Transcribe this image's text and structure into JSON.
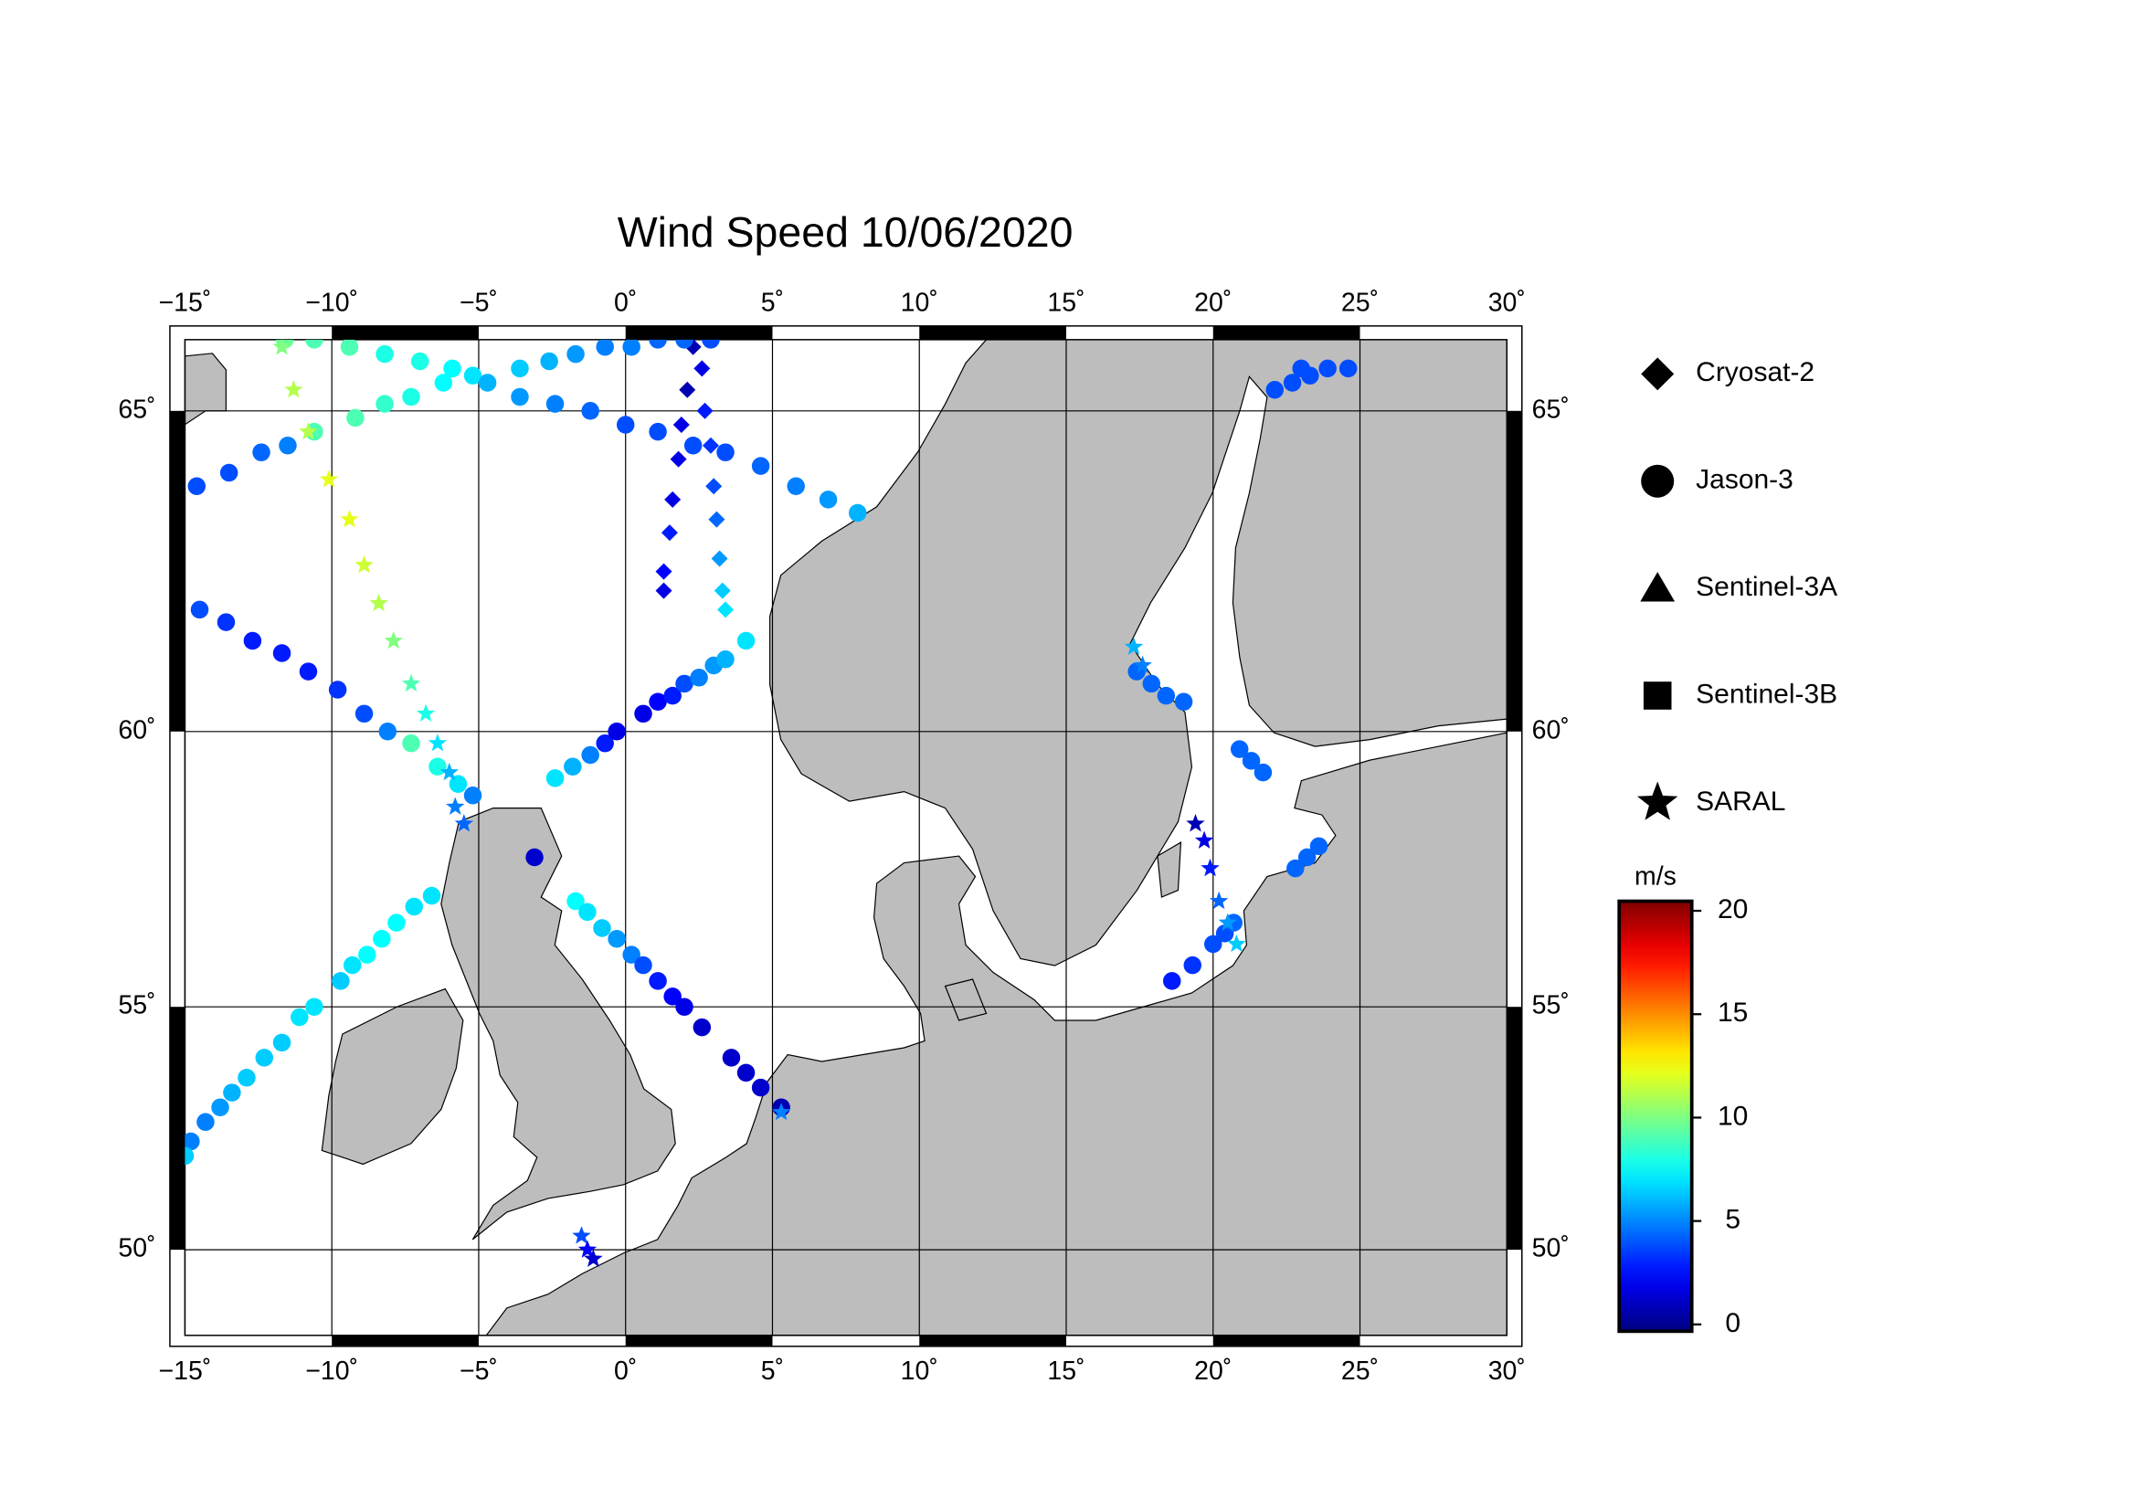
{
  "chart_data": {
    "type": "map",
    "projection": "mercator",
    "title": "Wind Speed 10/06/2020",
    "xlim": [
      -15,
      30
    ],
    "ylim": [
      48.1,
      66.0
    ],
    "xticks": [
      {
        "value": -15,
        "label": "−15˚"
      },
      {
        "value": -10,
        "label": "−10˚"
      },
      {
        "value": -5,
        "label": "−5˚"
      },
      {
        "value": 0,
        "label": "0˚"
      },
      {
        "value": 5,
        "label": "5˚"
      },
      {
        "value": 10,
        "label": "10˚"
      },
      {
        "value": 15,
        "label": "15˚"
      },
      {
        "value": 20,
        "label": "20˚"
      },
      {
        "value": 25,
        "label": "25˚"
      },
      {
        "value": 30,
        "label": "30˚"
      }
    ],
    "yticks": [
      {
        "value": 50,
        "label": "50˚"
      },
      {
        "value": 55,
        "label": "55˚"
      },
      {
        "value": 60,
        "label": "60˚"
      },
      {
        "value": 65,
        "label": "65˚"
      }
    ],
    "grid": true,
    "colorbar": {
      "label": "m/s",
      "lim": [
        0,
        20
      ],
      "ticks": [
        0,
        5,
        10,
        15,
        20
      ],
      "colormap": "jet"
    },
    "series": [
      {
        "name": "Cryosat-2",
        "marker": "diamond",
        "tracks": [
          [
            [
              2.3,
              65.9,
              1
            ],
            [
              2.1,
              65.3,
              1
            ],
            [
              1.9,
              64.8,
              2
            ],
            [
              1.8,
              64.3,
              2
            ],
            [
              1.6,
              63.7,
              2
            ],
            [
              1.5,
              63.2,
              3
            ],
            [
              1.3,
              62.6,
              2.5
            ],
            [
              1.3,
              62.3,
              2
            ]
          ],
          [
            [
              2.6,
              65.6,
              2
            ],
            [
              2.7,
              65.0,
              3
            ],
            [
              2.9,
              64.5,
              3.5
            ],
            [
              3.0,
              63.9,
              4
            ],
            [
              3.1,
              63.4,
              4.5
            ],
            [
              3.2,
              62.8,
              5.5
            ],
            [
              3.3,
              62.3,
              6.5
            ],
            [
              3.4,
              62.0,
              7
            ]
          ]
        ]
      },
      {
        "name": "Jason-3",
        "marker": "circle",
        "tracks": [
          [
            [
              -14.6,
              63.9,
              4
            ],
            [
              -13.5,
              64.1,
              4
            ],
            [
              -12.4,
              64.4,
              4.5
            ],
            [
              -11.5,
              64.5,
              5
            ],
            [
              -10.6,
              64.7,
              9
            ],
            [
              -9.2,
              64.9,
              9
            ],
            [
              -8.2,
              65.1,
              8.5
            ],
            [
              -7.3,
              65.2,
              8
            ],
            [
              -6.2,
              65.4,
              7.5
            ],
            [
              -5.2,
              65.5,
              7
            ],
            [
              -3.6,
              65.6,
              6.5
            ],
            [
              -2.6,
              65.7,
              6
            ],
            [
              -1.7,
              65.8,
              5.5
            ],
            [
              -0.7,
              65.9,
              5
            ],
            [
              0.2,
              65.9,
              5
            ],
            [
              1.1,
              66.0,
              4.5
            ],
            [
              2.0,
              66.0,
              4.5
            ],
            [
              2.9,
              66.0,
              4
            ]
          ],
          [
            [
              -11.6,
              66.0,
              9.5
            ],
            [
              -10.6,
              66.0,
              9
            ],
            [
              -9.4,
              65.9,
              9
            ],
            [
              -8.2,
              65.8,
              8
            ],
            [
              -7.0,
              65.7,
              8
            ],
            [
              -5.9,
              65.6,
              7.5
            ],
            [
              -4.7,
              65.4,
              6
            ],
            [
              -3.6,
              65.2,
              5.5
            ],
            [
              -2.4,
              65.1,
              5
            ],
            [
              -1.2,
              65.0,
              4.5
            ],
            [
              0.0,
              64.8,
              4
            ],
            [
              1.1,
              64.7,
              4
            ],
            [
              2.3,
              64.5,
              4
            ],
            [
              3.4,
              64.4,
              4
            ],
            [
              4.6,
              64.2,
              4.5
            ],
            [
              5.8,
              63.9,
              5
            ],
            [
              6.9,
              63.7,
              5.5
            ],
            [
              7.9,
              63.5,
              6
            ]
          ],
          [
            [
              -14.5,
              62.0,
              4
            ],
            [
              -13.6,
              61.8,
              3.5
            ],
            [
              -12.7,
              61.5,
              3
            ],
            [
              -11.7,
              61.3,
              3
            ],
            [
              -10.8,
              61.0,
              3
            ],
            [
              -9.8,
              60.7,
              3.5
            ],
            [
              -8.9,
              60.3,
              4
            ],
            [
              -8.1,
              60.0,
              5
            ],
            [
              -7.3,
              59.8,
              9
            ],
            [
              -6.4,
              59.4,
              8
            ],
            [
              -5.7,
              59.1,
              7
            ],
            [
              -5.2,
              58.9,
              5
            ]
          ],
          [
            [
              -2.4,
              59.2,
              7
            ],
            [
              -1.8,
              59.4,
              6
            ],
            [
              -1.2,
              59.6,
              5
            ],
            [
              -0.7,
              59.8,
              3
            ],
            [
              -0.3,
              60.0,
              2
            ],
            [
              0.6,
              60.3,
              2
            ],
            [
              1.1,
              60.5,
              2.5
            ],
            [
              1.6,
              60.6,
              3
            ],
            [
              2.0,
              60.8,
              4
            ],
            [
              2.5,
              60.9,
              5
            ],
            [
              3.0,
              61.1,
              5.5
            ],
            [
              3.4,
              61.2,
              6
            ],
            [
              4.1,
              61.5,
              7
            ]
          ],
          [
            [
              -6.6,
              57.1,
              7
            ],
            [
              -7.2,
              56.9,
              7
            ],
            [
              -7.8,
              56.6,
              7.5
            ],
            [
              -8.3,
              56.3,
              7.5
            ],
            [
              -8.8,
              56.0,
              7.5
            ],
            [
              -9.3,
              55.8,
              7
            ],
            [
              -9.7,
              55.5,
              6.5
            ]
          ],
          [
            [
              -10.6,
              55.0,
              7
            ],
            [
              -11.1,
              54.8,
              7
            ],
            [
              -11.7,
              54.3,
              6.5
            ],
            [
              -12.3,
              54.0,
              6.5
            ],
            [
              -12.9,
              53.6,
              6.5
            ],
            [
              -13.4,
              53.3,
              6
            ],
            [
              -13.8,
              53.0,
              5.5
            ],
            [
              -14.3,
              52.7,
              5
            ],
            [
              -14.8,
              52.3,
              5
            ],
            [
              -15.0,
              52.0,
              6.5
            ]
          ],
          [
            [
              -1.7,
              57.0,
              7.5
            ],
            [
              -1.3,
              56.8,
              7
            ],
            [
              -0.8,
              56.5,
              6.5
            ],
            [
              -0.3,
              56.3,
              5.5
            ],
            [
              0.2,
              56.0,
              5
            ],
            [
              0.6,
              55.8,
              4
            ],
            [
              1.1,
              55.5,
              3
            ],
            [
              1.6,
              55.2,
              2.5
            ],
            [
              2.0,
              55.0,
              2
            ],
            [
              2.6,
              54.6,
              1.5
            ]
          ],
          [
            [
              3.6,
              54.0,
              1.5
            ],
            [
              4.1,
              53.7,
              1.5
            ],
            [
              4.6,
              53.4,
              1.5
            ]
          ],
          [
            [
              5.3,
              53.0,
              1
            ]
          ],
          [
            [
              -3.1,
              57.8,
              1.5
            ]
          ],
          [
            [
              18.6,
              55.5,
              3
            ],
            [
              19.3,
              55.8,
              3.5
            ],
            [
              20.0,
              56.2,
              4
            ],
            [
              20.4,
              56.4,
              4
            ],
            [
              20.7,
              56.6,
              4.5
            ]
          ],
          [
            [
              22.8,
              57.6,
              4.5
            ],
            [
              23.2,
              57.8,
              4.5
            ],
            [
              23.6,
              58.0,
              4.5
            ]
          ],
          [
            [
              17.4,
              61.0,
              4.5
            ],
            [
              17.9,
              60.8,
              4.5
            ],
            [
              18.4,
              60.6,
              4.5
            ],
            [
              19.0,
              60.5,
              4.5
            ]
          ],
          [
            [
              20.9,
              59.7,
              4.5
            ],
            [
              21.3,
              59.5,
              4.5
            ],
            [
              21.7,
              59.3,
              4.5
            ]
          ],
          [
            [
              22.1,
              65.3,
              4
            ],
            [
              22.7,
              65.4,
              4
            ],
            [
              23.3,
              65.5,
              4
            ],
            [
              23.9,
              65.6,
              4
            ],
            [
              24.6,
              65.6,
              4
            ],
            [
              23.0,
              65.6,
              4
            ]
          ]
        ]
      },
      {
        "name": "Sentinel-3A",
        "marker": "triangle",
        "tracks": []
      },
      {
        "name": "Sentinel-3B",
        "marker": "square",
        "tracks": []
      },
      {
        "name": "SARAL",
        "marker": "star",
        "tracks": [
          [
            [
              -11.7,
              65.9,
              10
            ],
            [
              -11.3,
              65.3,
              11
            ],
            [
              -10.8,
              64.7,
              11
            ],
            [
              -10.1,
              64.0,
              12
            ],
            [
              -9.4,
              63.4,
              12
            ],
            [
              -8.9,
              62.7,
              11.5
            ],
            [
              -8.4,
              62.1,
              11
            ],
            [
              -7.9,
              61.5,
              10
            ],
            [
              -7.3,
              60.8,
              9
            ],
            [
              -6.8,
              60.3,
              8
            ],
            [
              -6.4,
              59.8,
              7
            ],
            [
              -6.0,
              59.3,
              6
            ],
            [
              -5.8,
              58.7,
              5
            ],
            [
              -5.5,
              58.4,
              4.5
            ]
          ],
          [
            [
              19.4,
              58.4,
              1
            ],
            [
              19.7,
              58.1,
              2
            ],
            [
              19.9,
              57.6,
              3
            ],
            [
              20.2,
              57.0,
              4.5
            ],
            [
              20.5,
              56.6,
              5.5
            ],
            [
              20.8,
              56.2,
              6.5
            ]
          ],
          [
            [
              17.3,
              61.4,
              6
            ],
            [
              17.6,
              61.1,
              5
            ]
          ],
          [
            [
              -1.5,
              50.3,
              4
            ],
            [
              -1.3,
              50.0,
              2.5
            ],
            [
              -1.1,
              49.8,
              1.5
            ]
          ],
          [
            [
              5.3,
              52.9,
              5
            ]
          ]
        ]
      }
    ]
  }
}
